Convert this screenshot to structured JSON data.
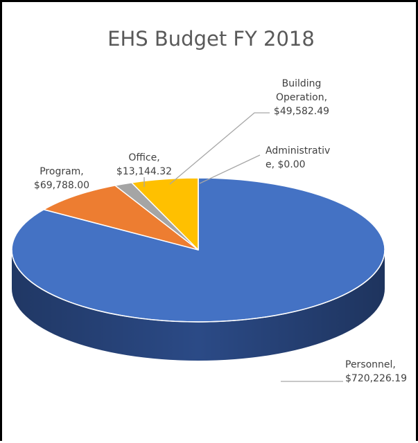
{
  "chart_data": {
    "type": "pie",
    "title": "EHS Budget FY 2018",
    "slices": [
      {
        "name": "Personnel",
        "value": 720226.19,
        "label_lines": [
          "Personnel,",
          "$720,226.19"
        ],
        "color": "#4472C4",
        "side": "#2B4A86"
      },
      {
        "name": "Program",
        "value": 69788.0,
        "label_lines": [
          "Program,",
          "$69,788.00"
        ],
        "color": "#ED7D31",
        "side": "#A6521B"
      },
      {
        "name": "Office",
        "value": 13144.32,
        "label_lines": [
          "Office,",
          "$13,144.32"
        ],
        "color": "#A5A5A5",
        "side": "#6F6F6F"
      },
      {
        "name": "Building Operation",
        "value": 49582.49,
        "label_lines": [
          "Building",
          "Operation,",
          "$49,582.49"
        ],
        "color": "#FFC000",
        "side": "#B38600"
      },
      {
        "name": "Administrative",
        "value": 0.0,
        "label_lines": [
          "Administrativ",
          "e, $0.00"
        ],
        "color": "#5B9BD5",
        "side": "#3A6F9E"
      }
    ],
    "legend": "none",
    "style": "3d-pie"
  }
}
